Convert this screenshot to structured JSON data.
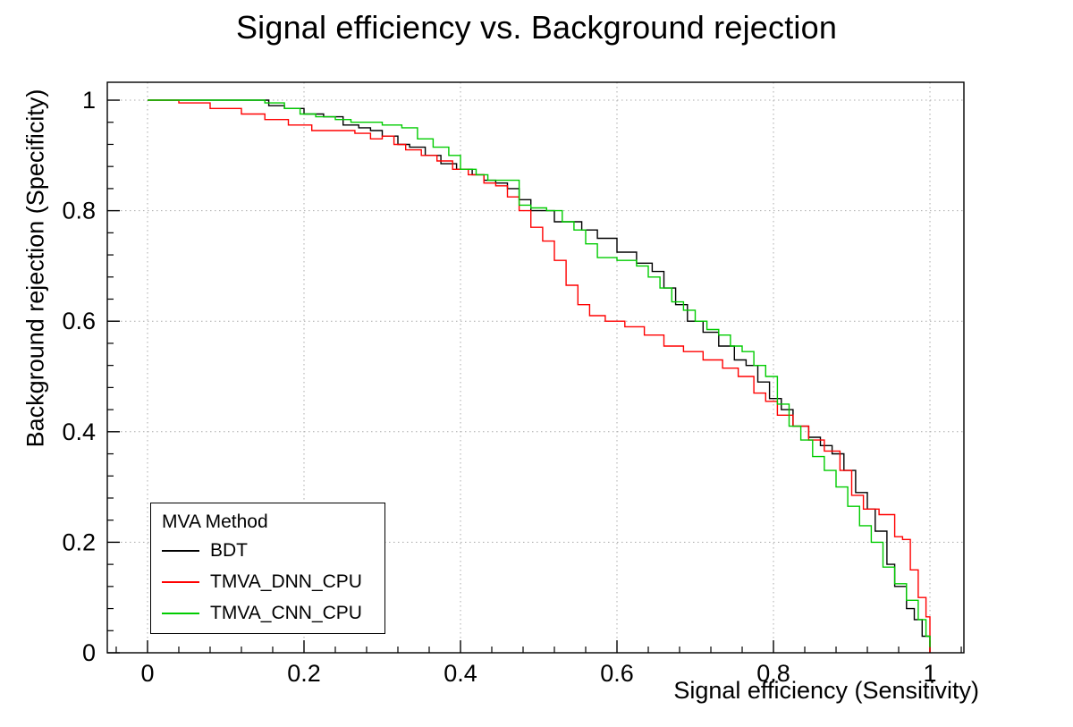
{
  "chart_data": {
    "type": "line",
    "line_style": "steps",
    "title": "Signal efficiency vs. Background rejection",
    "xlabel": "Signal efficiency (Sensitivity)",
    "ylabel": "Background rejection (Specificity)",
    "xlim": [
      -0.0514,
      1.0434
    ],
    "ylim": [
      0,
      1.0324
    ],
    "grid": true,
    "grid_color": "#aaaaaa",
    "frame_color": "#000000",
    "x_ticks": {
      "values": [
        0,
        0.2,
        0.4,
        0.6,
        0.8,
        1
      ],
      "labels": [
        "0",
        "0.2",
        "0.4",
        "0.6",
        "0.8",
        "1"
      ]
    },
    "y_ticks": {
      "values": [
        0,
        0.2,
        0.4,
        0.6,
        0.8,
        1
      ],
      "labels": [
        "0",
        "0.2",
        "0.4",
        "0.6",
        "0.8",
        "1"
      ]
    },
    "legend": {
      "title": "MVA Method",
      "position": "bottom-left"
    },
    "series": [
      {
        "name": "BDT",
        "color": "#000000",
        "x": [
          0,
          0.13,
          0.155,
          0.175,
          0.2,
          0.225,
          0.25,
          0.27,
          0.285,
          0.3,
          0.32,
          0.335,
          0.355,
          0.375,
          0.395,
          0.415,
          0.43,
          0.445,
          0.46,
          0.475,
          0.49,
          0.52,
          0.555,
          0.575,
          0.6,
          0.625,
          0.645,
          0.66,
          0.675,
          0.69,
          0.71,
          0.73,
          0.75,
          0.765,
          0.78,
          0.795,
          0.81,
          0.825,
          0.845,
          0.86,
          0.875,
          0.89,
          0.905,
          0.92,
          0.93,
          0.945,
          0.955,
          0.97,
          0.98,
          0.99,
          1.0
        ],
        "y": [
          1.0,
          1.0,
          0.99,
          0.985,
          0.975,
          0.97,
          0.955,
          0.95,
          0.945,
          0.935,
          0.92,
          0.915,
          0.9,
          0.885,
          0.875,
          0.865,
          0.855,
          0.85,
          0.84,
          0.82,
          0.8,
          0.78,
          0.765,
          0.75,
          0.725,
          0.705,
          0.69,
          0.66,
          0.63,
          0.6,
          0.58,
          0.555,
          0.53,
          0.52,
          0.49,
          0.46,
          0.44,
          0.41,
          0.39,
          0.375,
          0.36,
          0.33,
          0.29,
          0.26,
          0.22,
          0.16,
          0.12,
          0.08,
          0.06,
          0.03,
          0.0
        ]
      },
      {
        "name": "TMVA_DNN_CPU",
        "color": "#ff0000",
        "x": [
          0,
          0.04,
          0.08,
          0.12,
          0.15,
          0.18,
          0.21,
          0.24,
          0.265,
          0.285,
          0.3,
          0.315,
          0.33,
          0.35,
          0.37,
          0.39,
          0.41,
          0.43,
          0.445,
          0.46,
          0.475,
          0.49,
          0.505,
          0.52,
          0.535,
          0.55,
          0.565,
          0.585,
          0.61,
          0.635,
          0.66,
          0.685,
          0.71,
          0.735,
          0.755,
          0.775,
          0.79,
          0.805,
          0.825,
          0.845,
          0.865,
          0.885,
          0.9,
          0.915,
          0.935,
          0.955,
          0.965,
          0.975,
          0.985,
          0.995,
          1.0
        ],
        "y": [
          1.0,
          0.995,
          0.985,
          0.975,
          0.965,
          0.955,
          0.945,
          0.945,
          0.94,
          0.93,
          0.935,
          0.92,
          0.91,
          0.9,
          0.89,
          0.875,
          0.865,
          0.85,
          0.845,
          0.825,
          0.8,
          0.77,
          0.745,
          0.71,
          0.665,
          0.63,
          0.61,
          0.6,
          0.59,
          0.575,
          0.555,
          0.545,
          0.53,
          0.515,
          0.5,
          0.47,
          0.455,
          0.43,
          0.41,
          0.385,
          0.365,
          0.33,
          0.285,
          0.26,
          0.25,
          0.21,
          0.205,
          0.15,
          0.1,
          0.065,
          0.0
        ]
      },
      {
        "name": "TMVA_CNN_CPU",
        "color": "#00cc00",
        "x": [
          0,
          0.12,
          0.15,
          0.175,
          0.195,
          0.215,
          0.24,
          0.26,
          0.3,
          0.325,
          0.345,
          0.365,
          0.385,
          0.4,
          0.42,
          0.435,
          0.475,
          0.49,
          0.51,
          0.53,
          0.545,
          0.56,
          0.575,
          0.6,
          0.625,
          0.64,
          0.655,
          0.67,
          0.685,
          0.7,
          0.715,
          0.73,
          0.745,
          0.76,
          0.775,
          0.79,
          0.805,
          0.82,
          0.835,
          0.85,
          0.865,
          0.88,
          0.895,
          0.91,
          0.925,
          0.94,
          0.955,
          0.97,
          0.985,
          0.995,
          1.0
        ],
        "y": [
          1.0,
          1.0,
          0.995,
          0.985,
          0.975,
          0.97,
          0.965,
          0.96,
          0.955,
          0.95,
          0.93,
          0.915,
          0.9,
          0.875,
          0.865,
          0.855,
          0.81,
          0.805,
          0.8,
          0.78,
          0.765,
          0.74,
          0.715,
          0.71,
          0.7,
          0.68,
          0.66,
          0.635,
          0.62,
          0.6,
          0.585,
          0.575,
          0.555,
          0.545,
          0.52,
          0.5,
          0.45,
          0.41,
          0.385,
          0.355,
          0.33,
          0.3,
          0.265,
          0.23,
          0.2,
          0.155,
          0.125,
          0.095,
          0.06,
          0.03,
          0.01
        ]
      }
    ]
  }
}
